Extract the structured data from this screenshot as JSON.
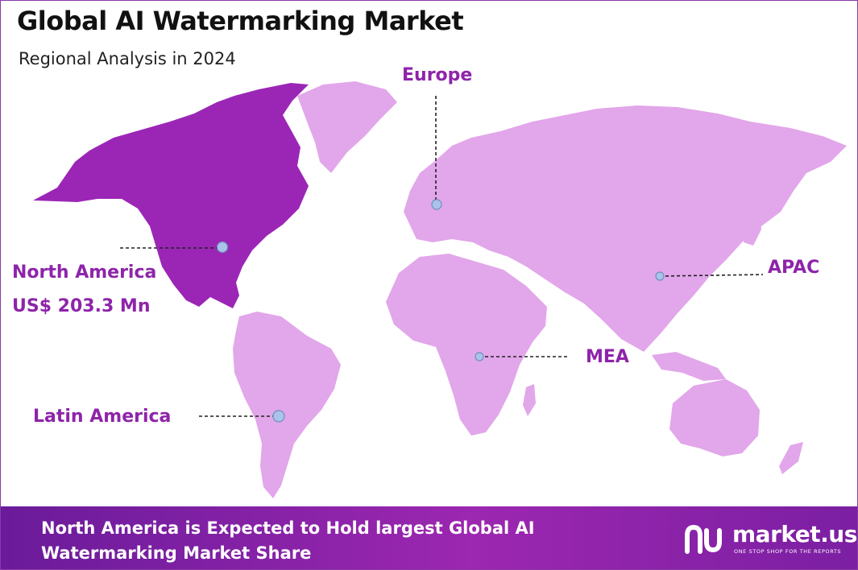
{
  "title": "Global AI Watermarking Market",
  "subtitle": "Regional Analysis in 2024",
  "regions": {
    "europe": "Europe",
    "north_america": "North America",
    "north_america_value": "US$ 203.3 Mn",
    "apac": "APAC",
    "mea": "MEA",
    "latin_america": "Latin America"
  },
  "footer": {
    "message": "North America is Expected to Hold largest Global  AI Watermarking Market Share"
  },
  "logo": {
    "name": "market.us",
    "tagline": "ONE STOP SHOP FOR THE REPORTS"
  },
  "colors": {
    "highlight_region": "#9b26b6",
    "other_regions": "#e2a6ea",
    "label_text": "#8e24aa",
    "marker": "#a9c3ea"
  }
}
